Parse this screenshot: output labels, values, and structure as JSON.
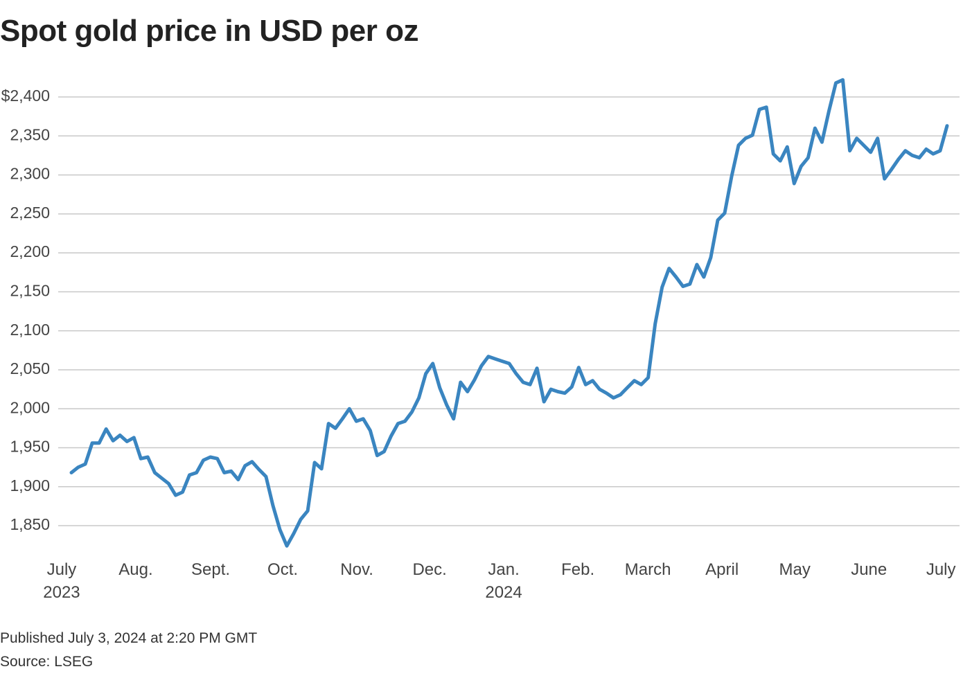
{
  "title": "Spot gold price in USD per oz",
  "published": "Published July 3, 2024 at 2:20 PM GMT",
  "source": "Source: LSEG",
  "chart_data": {
    "type": "line",
    "series": [
      {
        "name": "Spot gold",
        "color": "#3a85c0",
        "values": [
          1918,
          1925,
          1929,
          1956,
          1956,
          1974,
          1959,
          1966,
          1958,
          1963,
          1936,
          1938,
          1918,
          1911,
          1904,
          1889,
          1893,
          1915,
          1918,
          1934,
          1938,
          1936,
          1918,
          1920,
          1909,
          1927,
          1932,
          1922,
          1913,
          1876,
          1845,
          1824,
          1840,
          1858,
          1869,
          1931,
          1923,
          1981,
          1975,
          1987,
          2000,
          1984,
          1987,
          1972,
          1940,
          1945,
          1965,
          1981,
          1984,
          1996,
          2014,
          2045,
          2058,
          2027,
          2005,
          1987,
          2034,
          2022,
          2037,
          2055,
          2067,
          2064,
          2061,
          2058,
          2045,
          2034,
          2031,
          2052,
          2009,
          2025,
          2022,
          2020,
          2028,
          2053,
          2031,
          2036,
          2025,
          2020,
          2014,
          2018,
          2027,
          2036,
          2031,
          2040,
          2109,
          2156,
          2180,
          2169,
          2157,
          2160,
          2185,
          2169,
          2194,
          2242,
          2251,
          2298,
          2338,
          2347,
          2351,
          2384,
          2387,
          2327,
          2318,
          2336,
          2289,
          2311,
          2322,
          2360,
          2342,
          2382,
          2418,
          2422,
          2331,
          2347,
          2338,
          2329,
          2347,
          2295,
          2307,
          2320,
          2331,
          2325,
          2322,
          2333,
          2327,
          2331,
          2363
        ]
      }
    ],
    "xlim": [
      0,
      126
    ],
    "xticks": [
      {
        "value": -1.4,
        "label": "July\n2023"
      },
      {
        "value": 9.27,
        "label": "Aug."
      },
      {
        "value": 20.04,
        "label": "Sept."
      },
      {
        "value": 30.41,
        "label": "Oct."
      },
      {
        "value": 41.08,
        "label": "Nov."
      },
      {
        "value": 51.55,
        "label": "Dec."
      },
      {
        "value": 62.21,
        "label": "Jan.\n2024"
      },
      {
        "value": 72.88,
        "label": "Feb."
      },
      {
        "value": 82.95,
        "label": "March"
      },
      {
        "value": 93.62,
        "label": "April"
      },
      {
        "value": 104.09,
        "label": "May"
      },
      {
        "value": 114.76,
        "label": "June"
      },
      {
        "value": 125.12,
        "label": "July"
      }
    ],
    "ylim": [
      1820,
      2425
    ],
    "yticks": [
      {
        "value": 1850,
        "label": "1,850"
      },
      {
        "value": 1900,
        "label": "1,900"
      },
      {
        "value": 1950,
        "label": "1,950"
      },
      {
        "value": 2000,
        "label": "2,000"
      },
      {
        "value": 2050,
        "label": "2,050"
      },
      {
        "value": 2100,
        "label": "2,100"
      },
      {
        "value": 2150,
        "label": "2,150"
      },
      {
        "value": 2200,
        "label": "2,200"
      },
      {
        "value": 2250,
        "label": "2,250"
      },
      {
        "value": 2300,
        "label": "2,300"
      },
      {
        "value": 2350,
        "label": "2,350"
      },
      {
        "value": 2400,
        "label": "$2,400"
      }
    ],
    "grid": true
  }
}
